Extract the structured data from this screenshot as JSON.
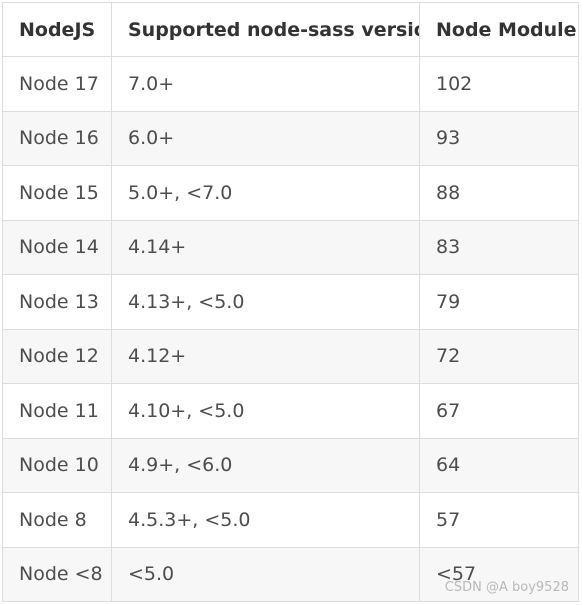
{
  "table": {
    "headers": [
      "NodeJS",
      "Supported node-sass version",
      "Node Module"
    ],
    "rows": [
      [
        "Node 17",
        "7.0+",
        "102"
      ],
      [
        "Node 16",
        "6.0+",
        "93"
      ],
      [
        "Node 15",
        "5.0+, <7.0",
        "88"
      ],
      [
        "Node 14",
        "4.14+",
        "83"
      ],
      [
        "Node 13",
        "4.13+, <5.0",
        "79"
      ],
      [
        "Node 12",
        "4.12+",
        "72"
      ],
      [
        "Node 11",
        "4.10+, <5.0",
        "67"
      ],
      [
        "Node 10",
        "4.9+, <6.0",
        "64"
      ],
      [
        "Node 8",
        "4.5.3+, <5.0",
        "57"
      ],
      [
        "Node <8",
        "<5.0",
        "<57"
      ]
    ]
  },
  "watermark": "CSDN @A boy9528"
}
